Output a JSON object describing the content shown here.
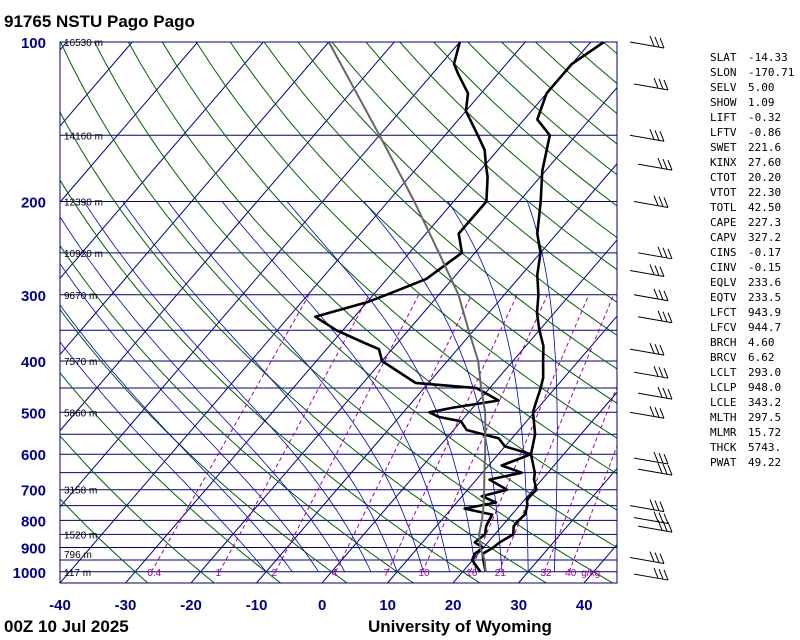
{
  "header": {
    "station": "91765 NSTU Pago Pago",
    "run": "00Z 10 Jul 2025",
    "source": "University of Wyoming"
  },
  "chart_data": {
    "type": "line",
    "subtype": "skew-t log-p",
    "x_axis": {
      "unit": "°C",
      "ticks": [
        -40,
        -30,
        -20,
        -10,
        0,
        10,
        20,
        30,
        40
      ],
      "range": [
        -40,
        45
      ]
    },
    "y_axis": {
      "unit": "hPa",
      "scale": "log",
      "ticks": [
        100,
        200,
        300,
        400,
        500,
        600,
        700,
        800,
        900,
        1000
      ],
      "range": [
        100,
        1050
      ]
    },
    "height_labels": [
      {
        "p": 100,
        "label": "16530 m"
      },
      {
        "p": 150,
        "label": "14160 m"
      },
      {
        "p": 200,
        "label": "12390 m"
      },
      {
        "p": 250,
        "label": "10920 m"
      },
      {
        "p": 300,
        "label": "9670 m"
      },
      {
        "p": 400,
        "label": "7570 m"
      },
      {
        "p": 500,
        "label": "5860 m"
      },
      {
        "p": 700,
        "label": "3158 m"
      },
      {
        "p": 850,
        "label": "1520 m"
      },
      {
        "p": 925,
        "label": "796 m"
      },
      {
        "p": 1000,
        "label": "117 m"
      }
    ],
    "mixing_ratio_labels": [
      "0.4",
      "1",
      "2",
      "4",
      "7",
      "10",
      "16",
      "21",
      "32",
      "40",
      "g/kg"
    ],
    "series": [
      {
        "name": "temperature",
        "points": [
          [
            1000,
            23.5
          ],
          [
            950,
            21.6
          ],
          [
            925,
            20.7
          ],
          [
            900,
            21.5
          ],
          [
            880,
            21.8
          ],
          [
            850,
            22.8
          ],
          [
            820,
            21.8
          ],
          [
            800,
            21.8
          ],
          [
            780,
            22.0
          ],
          [
            750,
            21.2
          ],
          [
            730,
            20.3
          ],
          [
            700,
            20.5
          ],
          [
            670,
            18.8
          ],
          [
            650,
            18.0
          ],
          [
            600,
            15.0
          ],
          [
            550,
            13.0
          ],
          [
            500,
            9.8
          ],
          [
            480,
            9.0
          ],
          [
            450,
            7.8
          ],
          [
            430,
            6.8
          ],
          [
            400,
            4.6
          ],
          [
            375,
            2.7
          ],
          [
            350,
            0.0
          ],
          [
            325,
            -2.6
          ],
          [
            300,
            -4.8
          ],
          [
            275,
            -7.6
          ],
          [
            250,
            -10.0
          ],
          [
            230,
            -13.0
          ],
          [
            200,
            -16.7
          ],
          [
            175,
            -20.5
          ],
          [
            150,
            -24.0
          ],
          [
            140,
            -28.0
          ],
          [
            125,
            -30.0
          ],
          [
            110,
            -30.0
          ],
          [
            100,
            -28.0
          ]
        ]
      },
      {
        "name": "dewpoint",
        "points": [
          [
            1000,
            22.7
          ],
          [
            950,
            19.9
          ],
          [
            925,
            19.5
          ],
          [
            900,
            19.9
          ],
          [
            880,
            18.0
          ],
          [
            850,
            18.5
          ],
          [
            820,
            17.6
          ],
          [
            800,
            17.3
          ],
          [
            780,
            17.0
          ],
          [
            760,
            12.0
          ],
          [
            740,
            16.0
          ],
          [
            720,
            13.0
          ],
          [
            700,
            16.0
          ],
          [
            670,
            12.0
          ],
          [
            650,
            16.0
          ],
          [
            630,
            12.0
          ],
          [
            600,
            15.0
          ],
          [
            580,
            10.0
          ],
          [
            560,
            8.0
          ],
          [
            540,
            2.0
          ],
          [
            520,
            0.0
          ],
          [
            510,
            -4.0
          ],
          [
            500,
            -6.0
          ],
          [
            490,
            -3.0
          ],
          [
            475,
            3.0
          ],
          [
            450,
            -2.0
          ],
          [
            440,
            -12.0
          ],
          [
            400,
            -20.0
          ],
          [
            380,
            -22.0
          ],
          [
            370,
            -25.0
          ],
          [
            350,
            -31.0
          ],
          [
            330,
            -36.0
          ],
          [
            310,
            -30.0
          ],
          [
            300,
            -28.0
          ],
          [
            280,
            -24.0
          ],
          [
            250,
            -22.0
          ],
          [
            230,
            -25.0
          ],
          [
            200,
            -25.0
          ],
          [
            180,
            -28.0
          ],
          [
            170,
            -30.0
          ],
          [
            160,
            -32.0
          ],
          [
            150,
            -35.0
          ],
          [
            135,
            -40.0
          ],
          [
            125,
            -42.0
          ],
          [
            115,
            -46.0
          ],
          [
            110,
            -48.0
          ],
          [
            100,
            -50.0
          ]
        ]
      },
      {
        "name": "parcel",
        "points": [
          [
            1000,
            23.5
          ],
          [
            950,
            21.8
          ],
          [
            900,
            19.5
          ],
          [
            850,
            17.6
          ],
          [
            800,
            16.2
          ],
          [
            750,
            14.5
          ],
          [
            700,
            12.5
          ],
          [
            650,
            10.3
          ],
          [
            600,
            8.0
          ],
          [
            550,
            5.4
          ],
          [
            500,
            2.5
          ],
          [
            450,
            -1.3
          ],
          [
            400,
            -5.3
          ],
          [
            350,
            -10.8
          ],
          [
            300,
            -17.0
          ],
          [
            250,
            -25.5
          ],
          [
            200,
            -36.0
          ],
          [
            175,
            -42.5
          ],
          [
            150,
            -50.0
          ],
          [
            125,
            -59.0
          ],
          [
            100,
            -70.0
          ]
        ]
      }
    ],
    "wind_barbs_present": true,
    "gridlines": {
      "isobars": true,
      "isotherms": true,
      "dry_adiabats": true,
      "moist_adiabats": true,
      "mixing_ratio": true
    }
  },
  "indices": [
    {
      "name": "SLAT",
      "value": "-14.33"
    },
    {
      "name": "SLON",
      "value": "-170.71"
    },
    {
      "name": "SELV",
      "value": "5.00"
    },
    {
      "name": "SHOW",
      "value": "1.09"
    },
    {
      "name": "LIFT",
      "value": "-0.32"
    },
    {
      "name": "LFTV",
      "value": "-0.86"
    },
    {
      "name": "SWET",
      "value": "221.6"
    },
    {
      "name": "KINX",
      "value": "27.60"
    },
    {
      "name": "CTOT",
      "value": "20.20"
    },
    {
      "name": "VTOT",
      "value": "22.30"
    },
    {
      "name": "TOTL",
      "value": "42.50"
    },
    {
      "name": "CAPE",
      "value": "227.3"
    },
    {
      "name": "CAPV",
      "value": "327.2"
    },
    {
      "name": "CINS",
      "value": "-0.17"
    },
    {
      "name": "CINV",
      "value": "-0.15"
    },
    {
      "name": "EQLV",
      "value": "233.6"
    },
    {
      "name": "EQTV",
      "value": "233.5"
    },
    {
      "name": "LFCT",
      "value": "943.9"
    },
    {
      "name": "LFCV",
      "value": "944.7"
    },
    {
      "name": "BRCH",
      "value": "4.60"
    },
    {
      "name": "BRCV",
      "value": "6.62"
    },
    {
      "name": "LCLT",
      "value": "293.0"
    },
    {
      "name": "LCLP",
      "value": "948.0"
    },
    {
      "name": "LCLE",
      "value": "343.2"
    },
    {
      "name": "MLTH",
      "value": "297.5"
    },
    {
      "name": "MLMR",
      "value": "15.72"
    },
    {
      "name": "THCK",
      "value": "5743."
    },
    {
      "name": "PWAT",
      "value": "49.22"
    }
  ],
  "colors": {
    "isobar": "#000080",
    "isotherm": "#000080",
    "dry_adiabat": "#006000",
    "moist_adiabat": "#0000c0",
    "mixing_ratio": "#a000a0",
    "axis_labels": "#00008b"
  }
}
